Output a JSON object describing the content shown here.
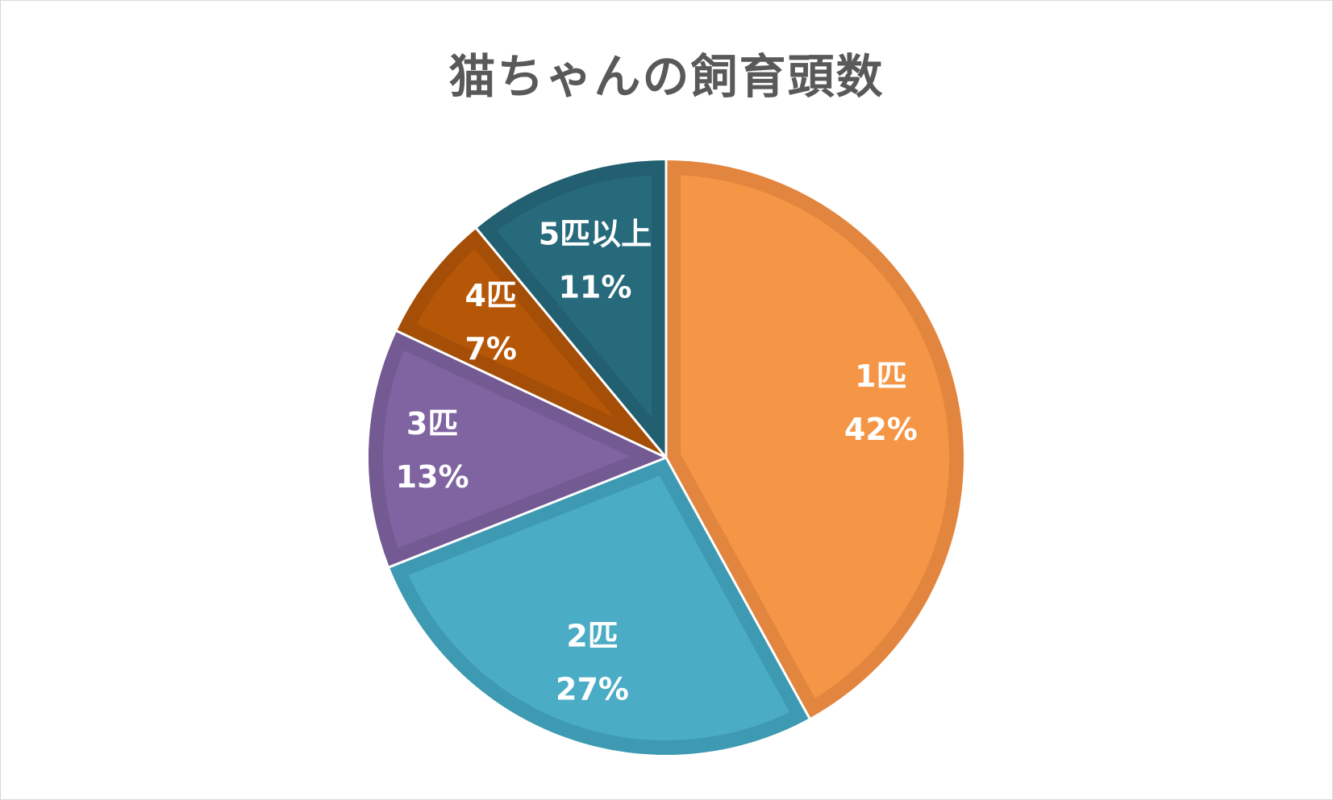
{
  "chart_data": {
    "type": "pie",
    "title": "猫ちゃんの飼育頭数",
    "categories": [
      "1匹",
      "2匹",
      "3匹",
      "4匹",
      "5匹以上"
    ],
    "values": [
      42,
      27,
      13,
      7,
      11
    ],
    "value_labels": [
      "42%",
      "27%",
      "13%",
      "7%",
      "11%"
    ],
    "colors": [
      "#F59646",
      "#4BACC6",
      "#8064A2",
      "#B65708",
      "#276A7C"
    ],
    "border_colors": [
      "#E2853F",
      "#3E9AB2",
      "#735A92",
      "#A44E07",
      "#225F70"
    ],
    "start_angle": "12 o'clock",
    "direction": "clockwise",
    "legend": "none",
    "data_labels": "inside"
  }
}
